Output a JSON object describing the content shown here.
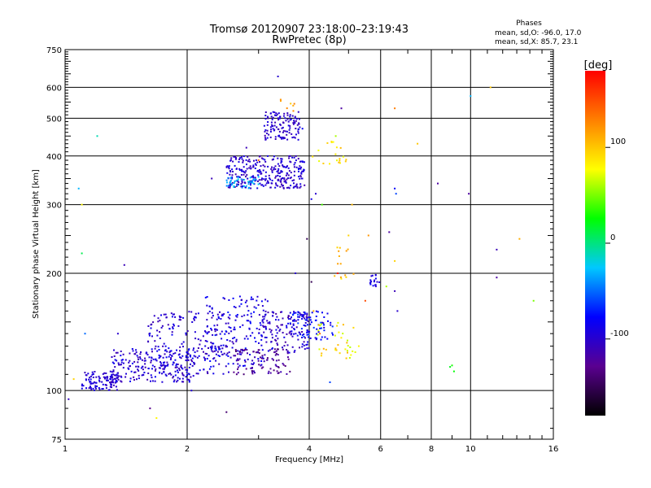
{
  "chart_data": {
    "type": "scatter",
    "title": "Tromsø 20120907 23:18:00–23:19:43",
    "subtitle": "RwPretec (8p)",
    "xlabel": "Frequency [MHz]",
    "ylabel": "Stationary phase Virtual Height [km]",
    "x_scale": "log",
    "y_scale": "log",
    "xlim": [
      1,
      16
    ],
    "ylim": [
      75,
      750
    ],
    "x_ticks": [
      1,
      2,
      4,
      6,
      8,
      10,
      16
    ],
    "y_ticks": [
      75,
      100,
      200,
      300,
      400,
      500,
      600,
      750
    ],
    "grid": true,
    "stats": {
      "heading": "Phases",
      "line_o": "mean, sd,O: -96.0, 17.0",
      "line_x": "mean, sd,X: 85.7, 23.1"
    },
    "colorbar": {
      "label": "[deg]",
      "ticks": [
        100,
        0,
        -100
      ],
      "range": [
        -180,
        180
      ],
      "colors": [
        "#000000",
        "#5a0090",
        "#0000ff",
        "#00c8ff",
        "#00ff00",
        "#ffff00",
        "#ff8000",
        "#ff0000"
      ]
    },
    "clusters": [
      {
        "x": [
          1.1,
          1.35
        ],
        "y": [
          100,
          112
        ],
        "phase": [
          -110,
          -85
        ],
        "n": 110
      },
      {
        "x": [
          1.3,
          2.1
        ],
        "y": [
          105,
          128
        ],
        "phase": [
          -115,
          -80
        ],
        "n": 220
      },
      {
        "x": [
          1.6,
          2.6
        ],
        "y": [
          110,
          160
        ],
        "phase": [
          -115,
          -80
        ],
        "n": 200
      },
      {
        "x": [
          2.2,
          3.2
        ],
        "y": [
          115,
          175
        ],
        "phase": [
          -110,
          -70
        ],
        "n": 170
      },
      {
        "x": [
          2.6,
          3.6
        ],
        "y": [
          110,
          128
        ],
        "phase": [
          -140,
          -110
        ],
        "n": 90
      },
      {
        "x": [
          3.0,
          4.0
        ],
        "y": [
          125,
          160
        ],
        "phase": [
          -120,
          -80
        ],
        "n": 130
      },
      {
        "x": [
          3.5,
          4.6
        ],
        "y": [
          135,
          160
        ],
        "phase": [
          -100,
          -60
        ],
        "n": 80
      },
      {
        "x": [
          4.2,
          5.2
        ],
        "y": [
          120,
          150
        ],
        "phase": [
          60,
          110
        ],
        "n": 35
      },
      {
        "x": [
          4.6,
          5.2
        ],
        "y": [
          190,
          235
        ],
        "phase": [
          80,
          120
        ],
        "n": 14
      },
      {
        "x": [
          5.6,
          6.0
        ],
        "y": [
          185,
          200
        ],
        "phase": [
          -100,
          -80
        ],
        "n": 18
      },
      {
        "x": [
          2.5,
          3.9
        ],
        "y": [
          330,
          400
        ],
        "phase": [
          -115,
          -85
        ],
        "n": 300
      },
      {
        "x": [
          2.5,
          3.0
        ],
        "y": [
          330,
          355
        ],
        "phase": [
          -50,
          -20
        ],
        "n": 40
      },
      {
        "x": [
          3.1,
          3.8
        ],
        "y": [
          440,
          520
        ],
        "phase": [
          -115,
          -85
        ],
        "n": 120
      },
      {
        "x": [
          4.0,
          5.0
        ],
        "y": [
          380,
          440
        ],
        "phase": [
          70,
          110
        ],
        "n": 20
      },
      {
        "x": [
          3.4,
          3.7
        ],
        "y": [
          520,
          560
        ],
        "phase": [
          110,
          130
        ],
        "n": 6
      }
    ],
    "points": [
      {
        "x": 1.02,
        "y": 95,
        "phase": -105
      },
      {
        "x": 1.05,
        "y": 107,
        "phase": 95
      },
      {
        "x": 1.08,
        "y": 330,
        "phase": -30
      },
      {
        "x": 1.1,
        "y": 300,
        "phase": 80
      },
      {
        "x": 1.12,
        "y": 140,
        "phase": -50
      },
      {
        "x": 1.2,
        "y": 450,
        "phase": -10
      },
      {
        "x": 1.1,
        "y": 225,
        "phase": 10
      },
      {
        "x": 1.35,
        "y": 140,
        "phase": -100
      },
      {
        "x": 1.4,
        "y": 210,
        "phase": -110
      },
      {
        "x": 1.62,
        "y": 90,
        "phase": -130
      },
      {
        "x": 1.68,
        "y": 85,
        "phase": 80
      },
      {
        "x": 2.05,
        "y": 100,
        "phase": -95
      },
      {
        "x": 2.5,
        "y": 88,
        "phase": -140
      },
      {
        "x": 3.35,
        "y": 640,
        "phase": -100
      },
      {
        "x": 3.6,
        "y": 545,
        "phase": 100
      },
      {
        "x": 3.85,
        "y": 470,
        "phase": -80
      },
      {
        "x": 3.95,
        "y": 245,
        "phase": -150
      },
      {
        "x": 4.05,
        "y": 310,
        "phase": -90
      },
      {
        "x": 4.15,
        "y": 320,
        "phase": -100
      },
      {
        "x": 4.05,
        "y": 190,
        "phase": -150
      },
      {
        "x": 4.35,
        "y": 145,
        "phase": -100
      },
      {
        "x": 4.5,
        "y": 105,
        "phase": -60
      },
      {
        "x": 4.65,
        "y": 450,
        "phase": 60
      },
      {
        "x": 4.7,
        "y": 200,
        "phase": 170
      },
      {
        "x": 4.8,
        "y": 530,
        "phase": -120
      },
      {
        "x": 5.0,
        "y": 250,
        "phase": 95
      },
      {
        "x": 5.1,
        "y": 300,
        "phase": 105
      },
      {
        "x": 5.3,
        "y": 130,
        "phase": 80
      },
      {
        "x": 5.5,
        "y": 170,
        "phase": 150
      },
      {
        "x": 5.6,
        "y": 250,
        "phase": 120
      },
      {
        "x": 6.2,
        "y": 185,
        "phase": 60
      },
      {
        "x": 6.3,
        "y": 255,
        "phase": -120
      },
      {
        "x": 6.5,
        "y": 530,
        "phase": 130
      },
      {
        "x": 6.5,
        "y": 330,
        "phase": -80
      },
      {
        "x": 6.55,
        "y": 320,
        "phase": -60
      },
      {
        "x": 6.5,
        "y": 180,
        "phase": -110
      },
      {
        "x": 6.6,
        "y": 160,
        "phase": -100
      },
      {
        "x": 6.5,
        "y": 215,
        "phase": 95
      },
      {
        "x": 7.4,
        "y": 430,
        "phase": 100
      },
      {
        "x": 8.3,
        "y": 340,
        "phase": -120
      },
      {
        "x": 8.9,
        "y": 115,
        "phase": 20
      },
      {
        "x": 9.0,
        "y": 116,
        "phase": 30
      },
      {
        "x": 9.1,
        "y": 112,
        "phase": 25
      },
      {
        "x": 9.9,
        "y": 320,
        "phase": -120
      },
      {
        "x": 10.0,
        "y": 570,
        "phase": -30
      },
      {
        "x": 11.2,
        "y": 600,
        "phase": 100
      },
      {
        "x": 11.6,
        "y": 230,
        "phase": -110
      },
      {
        "x": 11.6,
        "y": 195,
        "phase": -120
      },
      {
        "x": 13.2,
        "y": 245,
        "phase": 110
      },
      {
        "x": 14.3,
        "y": 170,
        "phase": 50
      },
      {
        "x": 3.0,
        "y": 390,
        "phase": 140
      },
      {
        "x": 2.3,
        "y": 350,
        "phase": -110
      },
      {
        "x": 2.8,
        "y": 420,
        "phase": -110
      },
      {
        "x": 3.7,
        "y": 200,
        "phase": -100
      },
      {
        "x": 4.3,
        "y": 300,
        "phase": 40
      },
      {
        "x": 4.1,
        "y": 160,
        "phase": 110
      },
      {
        "x": 4.25,
        "y": 140,
        "phase": 140
      }
    ]
  }
}
